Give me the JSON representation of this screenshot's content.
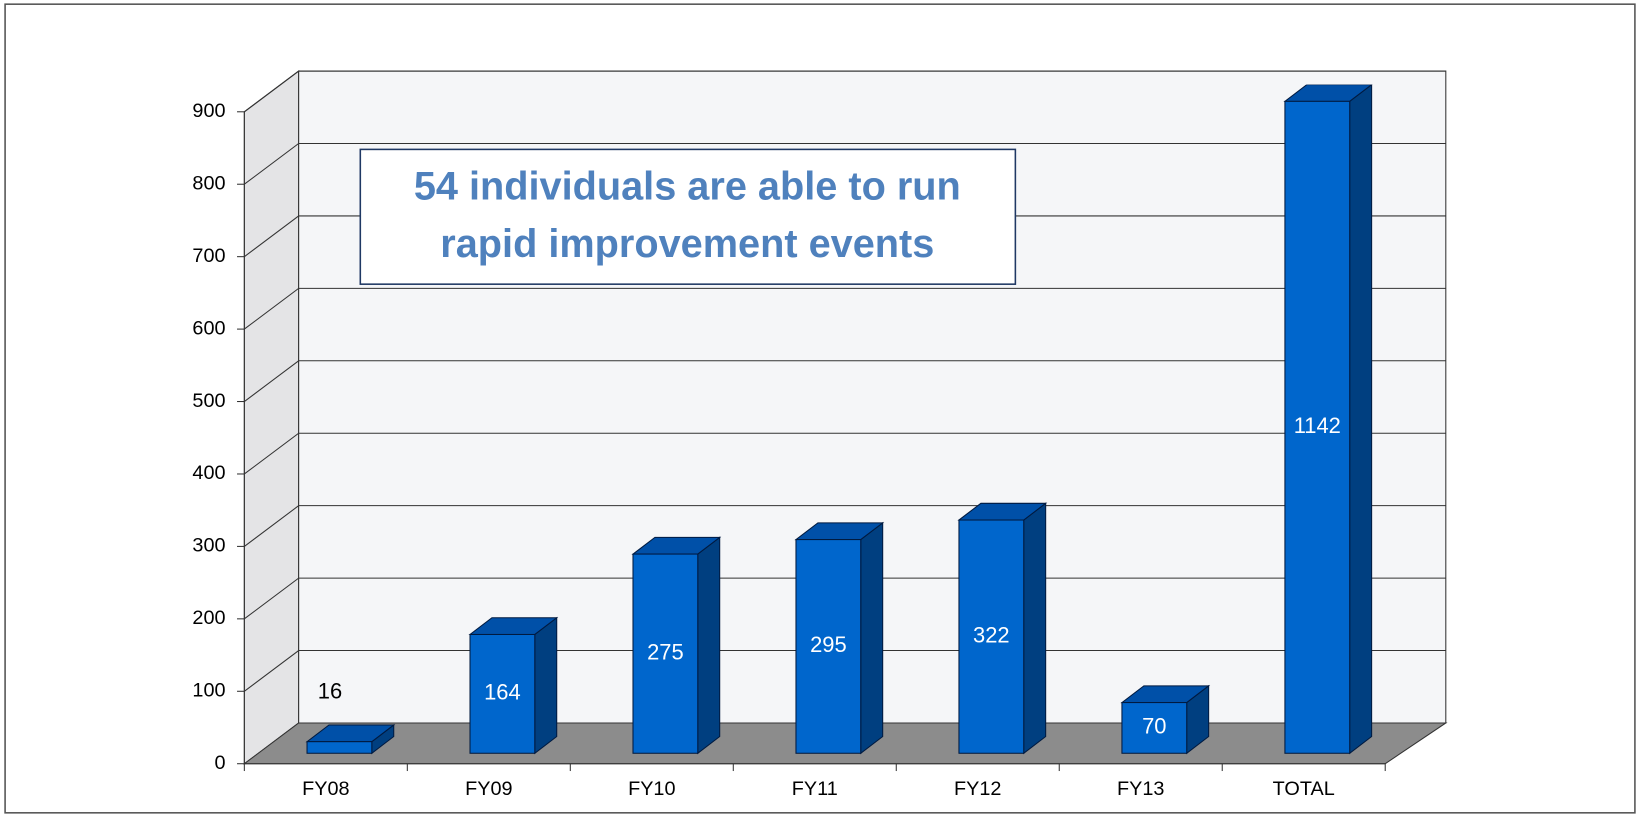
{
  "chart_data": {
    "type": "bar3d",
    "annotation": [
      "54 individuals are able to run",
      "rapid improvement events"
    ],
    "categories": [
      "FY08",
      "FY09",
      "FY10",
      "FY11",
      "FY12",
      "FY13",
      "TOTAL"
    ],
    "values": [
      16,
      164,
      275,
      295,
      322,
      70,
      1142
    ],
    "color": "#0066cc",
    "ylim": [
      0,
      900
    ],
    "yticks": [
      0,
      100,
      200,
      300,
      400,
      500,
      600,
      700,
      800,
      900
    ],
    "grid": true
  }
}
